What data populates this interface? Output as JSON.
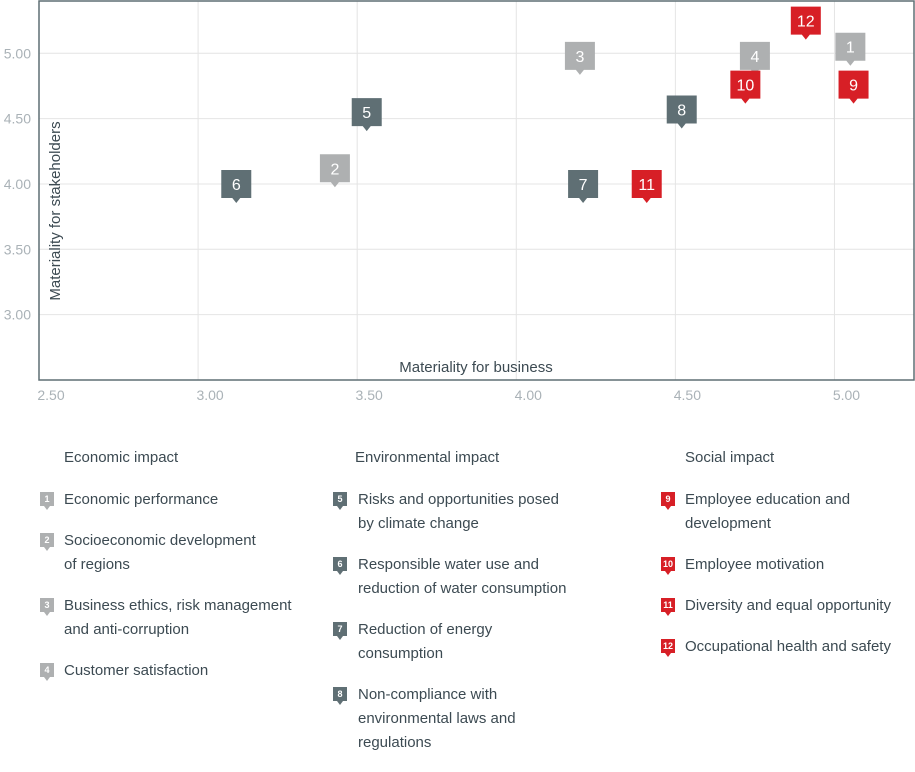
{
  "colors": {
    "economic": "#aeb0b1",
    "environmental": "#5f6f74",
    "social": "#d71f26",
    "grid": "#e4e4e4",
    "frame": "#5f6f74"
  },
  "chart_data": {
    "type": "scatter",
    "xlabel": "Materiality for business",
    "ylabel": "Materiality for stakeholders",
    "xlim": [
      2.5,
      5.25
    ],
    "ylim": [
      2.5,
      5.4
    ],
    "x_ticks": [
      "2.50",
      "3.00",
      "3.50",
      "4.00",
      "4.50",
      "5.00"
    ],
    "y_ticks": [
      "3.00",
      "3.50",
      "4.00",
      "4.50",
      "5.00"
    ],
    "grid": true,
    "points": [
      {
        "label": "1",
        "x": 5.05,
        "y": 5.05,
        "group": "economic"
      },
      {
        "label": "2",
        "x": 3.43,
        "y": 4.12,
        "group": "economic"
      },
      {
        "label": "3",
        "x": 4.2,
        "y": 4.98,
        "group": "economic"
      },
      {
        "label": "4",
        "x": 4.75,
        "y": 4.98,
        "group": "economic"
      },
      {
        "label": "5",
        "x": 3.53,
        "y": 4.55,
        "group": "environmental"
      },
      {
        "label": "6",
        "x": 3.12,
        "y": 4.0,
        "group": "environmental"
      },
      {
        "label": "7",
        "x": 4.21,
        "y": 4.0,
        "group": "environmental"
      },
      {
        "label": "8",
        "x": 4.52,
        "y": 4.57,
        "group": "environmental"
      },
      {
        "label": "9",
        "x": 5.06,
        "y": 4.76,
        "group": "social"
      },
      {
        "label": "10",
        "x": 4.72,
        "y": 4.76,
        "group": "social"
      },
      {
        "label": "11",
        "x": 4.41,
        "y": 4.0,
        "group": "social"
      },
      {
        "label": "12",
        "x": 4.91,
        "y": 5.25,
        "group": "social"
      }
    ]
  },
  "legend": {
    "economic": {
      "title": "Economic impact",
      "items": [
        {
          "num": "1",
          "text": "Economic performance"
        },
        {
          "num": "2",
          "text": "Socioeconomic development\nof regions"
        },
        {
          "num": "3",
          "text": "Business ethics, risk management\nand anti-corruption"
        },
        {
          "num": "4",
          "text": "Customer satisfaction"
        }
      ]
    },
    "environmental": {
      "title": "Environmental impact",
      "items": [
        {
          "num": "5",
          "text": "Risks and opportunities posed\nby climate change"
        },
        {
          "num": "6",
          "text": "Responsible water use and\nreduction of water consumption"
        },
        {
          "num": "7",
          "text": "Reduction of energy\nconsumption"
        },
        {
          "num": "8",
          "text": "Non-compliance with\nenvironmental laws and\nregulations"
        }
      ]
    },
    "social": {
      "title": "Social impact",
      "items": [
        {
          "num": "9",
          "text": "Employee education and\ndevelopment"
        },
        {
          "num": "10",
          "text": "Employee motivation"
        },
        {
          "num": "11",
          "text": "Diversity and equal opportunity"
        },
        {
          "num": "12",
          "text": "Occupational health and safety"
        }
      ]
    }
  }
}
